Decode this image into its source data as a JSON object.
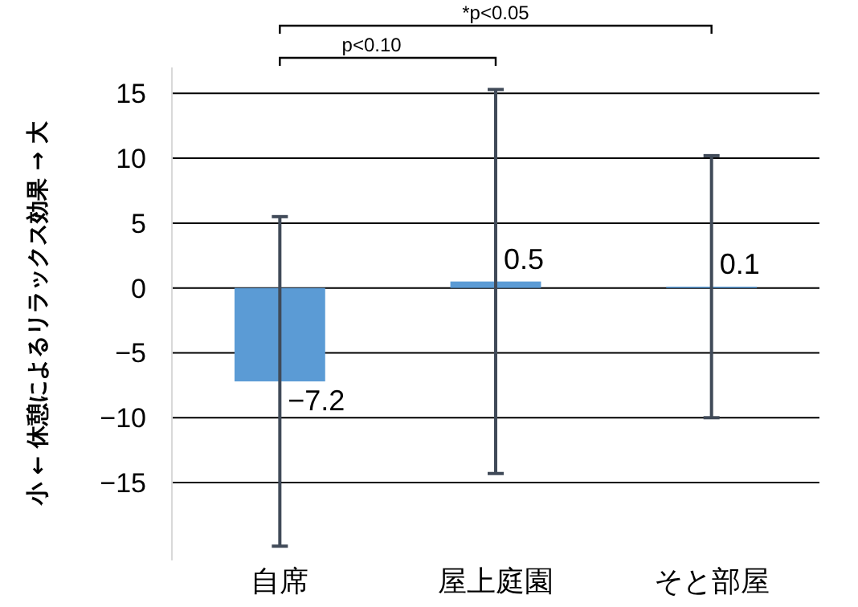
{
  "chart_data": {
    "type": "bar",
    "ylabel": "小 ← 休憩によるリラックス効果 → 大",
    "categories": [
      "自席",
      "屋上庭園",
      "そと部屋"
    ],
    "values": [
      -7.2,
      0.5,
      0.1
    ],
    "errors": [
      12.7,
      14.8,
      10.1
    ],
    "color": "#5b9bd5",
    "ylim": [
      -21,
      17
    ],
    "yticks": [
      -15,
      -10,
      -5,
      0,
      5,
      10,
      15
    ],
    "grid": "y",
    "data_labels": true,
    "annotations": [
      "p<0.10",
      "*p<0.05"
    ]
  }
}
